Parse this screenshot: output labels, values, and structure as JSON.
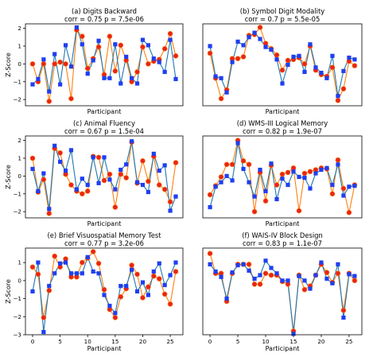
{
  "figure": {
    "x_label": "Participant",
    "y_label": "Z-Score",
    "series_colors": {
      "blue": "#1f77b4",
      "orange": "#ff7f0e",
      "blue_marker": "#1f3ff0",
      "red_marker": "#e8251a"
    }
  },
  "chart_data": [
    {
      "type": "line",
      "title": "(a) Digits Backward",
      "subtitle": "corr = 0.75  p = 7.5e-06",
      "xlabel": "",
      "ylabel": "Z-Score",
      "xlim": [
        -1.3,
        27.3
      ],
      "ylim": [
        -2.35,
        2.25
      ],
      "xticks": [],
      "yticks": [
        -2,
        -1,
        0,
        1,
        2
      ],
      "x": [
        0,
        1,
        2,
        3,
        4,
        5,
        6,
        7,
        8,
        9,
        10,
        11,
        12,
        13,
        14,
        15,
        16,
        17,
        18,
        19,
        20,
        21,
        22,
        23,
        24,
        25,
        26
      ],
      "series": [
        {
          "color": "blue",
          "marker": "square",
          "values": [
            -1.15,
            -0.85,
            0.25,
            -1.55,
            0.55,
            -1.15,
            1.05,
            -0.15,
            2.05,
            1.1,
            -0.55,
            0.2,
            1.3,
            -0.8,
            -0.8,
            1.1,
            -1.1,
            0.4,
            -0.8,
            -1.1,
            1.35,
            1.05,
            0.3,
            0.1,
            -0.45,
            1.35,
            -0.85
          ]
        },
        {
          "color": "orange",
          "marker": "circle",
          "values": [
            0.0,
            -1.0,
            0.0,
            -2.1,
            0.0,
            0.1,
            0.0,
            -1.95,
            1.9,
            1.55,
            -0.25,
            0.3,
            0.95,
            -0.6,
            1.55,
            -0.4,
            1.05,
            0.2,
            -1.0,
            -0.45,
            0.95,
            0.0,
            0.15,
            0.25,
            0.85,
            1.7,
            0.45
          ]
        }
      ]
    },
    {
      "type": "line",
      "title": "(b) Symbol Digit Modality",
      "subtitle": "corr = 0.7  p = 5.5e-05",
      "xlabel": "",
      "ylabel": "",
      "xlim": [
        -1.3,
        27.3
      ],
      "ylim": [
        -2.35,
        2.25
      ],
      "xticks": [],
      "yticks": [],
      "x": [
        0,
        1,
        2,
        3,
        4,
        5,
        6,
        7,
        8,
        9,
        10,
        11,
        12,
        13,
        14,
        15,
        16,
        17,
        18,
        19,
        20,
        21,
        22,
        23,
        24,
        25,
        26
      ],
      "series": [
        {
          "color": "blue",
          "marker": "square",
          "values": [
            1.0,
            -0.7,
            -0.8,
            -1.6,
            0.1,
            1.25,
            1.05,
            1.5,
            1.75,
            1.4,
            0.95,
            0.8,
            0.25,
            -1.1,
            -0.05,
            0.4,
            0.45,
            -0.45,
            1.1,
            -0.2,
            -0.5,
            -0.8,
            0.45,
            -1.8,
            -0.4,
            0.35,
            0.25
          ]
        },
        {
          "color": "orange",
          "marker": "circle",
          "values": [
            0.6,
            -0.8,
            -1.95,
            -1.45,
            0.3,
            0.3,
            0.4,
            1.6,
            1.65,
            2.05,
            1.15,
            0.85,
            0.5,
            -0.35,
            0.2,
            0.25,
            0.35,
            0.0,
            1.0,
            -0.35,
            -0.6,
            -0.7,
            -0.2,
            -2.05,
            -1.4,
            0.15,
            -0.1
          ]
        }
      ]
    },
    {
      "type": "line",
      "title": "(c) Animal Fluency",
      "subtitle": "corr = 0.67  p = 1.5e-04",
      "xlabel": "",
      "ylabel": "Z-Score",
      "xlim": [
        -1.3,
        27.3
      ],
      "ylim": [
        -2.35,
        2.25
      ],
      "xticks": [],
      "yticks": [
        -2,
        -1,
        0,
        1,
        2
      ],
      "x": [
        0,
        1,
        2,
        3,
        4,
        5,
        6,
        7,
        8,
        9,
        10,
        11,
        12,
        13,
        14,
        15,
        16,
        17,
        18,
        19,
        20,
        21,
        22,
        23,
        24,
        25,
        26
      ],
      "series": [
        {
          "color": "blue",
          "marker": "square",
          "values": [
            0.4,
            -0.85,
            0.15,
            -1.85,
            1.7,
            0.8,
            0.3,
            1.45,
            -0.75,
            -0.15,
            -0.5,
            1.05,
            -0.4,
            1.05,
            -0.2,
            -0.75,
            0.35,
            0.65,
            1.95,
            -0.35,
            -0.5,
            -0.9,
            1.25,
            0.3,
            0.6,
            -1.95,
            -1.15
          ]
        },
        {
          "color": "orange",
          "marker": "circle",
          "values": [
            1.0,
            -0.9,
            -0.2,
            -2.1,
            1.55,
            1.3,
            0.1,
            -0.5,
            -0.85,
            -1.0,
            -0.85,
            1.1,
            1.05,
            -0.25,
            0.1,
            -1.75,
            0.1,
            -0.1,
            1.9,
            -0.4,
            0.85,
            -0.3,
            1.1,
            -0.5,
            -0.75,
            -1.45,
            0.75
          ]
        }
      ]
    },
    {
      "type": "line",
      "title": "(d) WMS-III Logical Memory",
      "subtitle": "corr = 0.82  p = 1.9e-07",
      "xlabel": "",
      "ylabel": "",
      "xlim": [
        -1.3,
        27.3
      ],
      "ylim": [
        -2.35,
        2.25
      ],
      "xticks": [],
      "yticks": [],
      "x": [
        0,
        1,
        2,
        3,
        4,
        5,
        6,
        7,
        8,
        9,
        10,
        11,
        12,
        13,
        14,
        15,
        16,
        17,
        18,
        19,
        20,
        21,
        22,
        23,
        24,
        25,
        26
      ],
      "series": [
        {
          "color": "blue",
          "marker": "square",
          "values": [
            -1.75,
            -0.6,
            -0.35,
            0.0,
            -0.25,
            1.85,
            0.4,
            -0.35,
            -1.15,
            0.35,
            -0.85,
            0.7,
            -1.3,
            -0.15,
            -0.5,
            0.25,
            -0.05,
            -0.1,
            -0.7,
            0.15,
            0.35,
            0.45,
            -0.5,
            0.65,
            -1.1,
            -0.6,
            -0.55
          ]
        },
        {
          "color": "orange",
          "marker": "circle",
          "values": [
            -1.05,
            -0.55,
            -0.05,
            0.65,
            0.65,
            2.0,
            0.85,
            0.65,
            -2.0,
            0.2,
            -1.4,
            0.6,
            -0.5,
            0.1,
            0.2,
            0.45,
            -1.95,
            0.15,
            0.25,
            0.35,
            0.45,
            0.4,
            -1.0,
            0.9,
            -0.7,
            -2.05,
            -0.5
          ]
        }
      ]
    },
    {
      "type": "line",
      "title": "(e) Brief Visuospatial Memory Test",
      "subtitle": "corr = 0.77  p = 3.2e-06",
      "xlabel": "Participant",
      "ylabel": "Z-Score",
      "xlim": [
        -1.3,
        27.3
      ],
      "ylim": [
        -3.0,
        1.8
      ],
      "xticks": [
        0,
        5,
        10,
        15,
        20,
        25
      ],
      "yticks": [
        -3,
        -2,
        -1,
        0,
        1
      ],
      "x": [
        0,
        1,
        2,
        3,
        4,
        5,
        6,
        7,
        8,
        9,
        10,
        11,
        12,
        13,
        14,
        15,
        16,
        17,
        18,
        19,
        20,
        21,
        22,
        23,
        24,
        25,
        26
      ],
      "series": [
        {
          "color": "blue",
          "marker": "square",
          "values": [
            -0.6,
            1.0,
            -2.85,
            -0.3,
            0.4,
            0.95,
            1.0,
            0.4,
            0.4,
            0.4,
            1.3,
            0.5,
            0.4,
            -0.8,
            -1.4,
            -1.8,
            -0.3,
            -0.3,
            0.6,
            -0.6,
            -0.1,
            -0.8,
            0.5,
            0.95,
            -0.25,
            0.3,
            1.0
          ]
        },
        {
          "color": "orange",
          "marker": "circle",
          "values": [
            0.75,
            0.35,
            -2.05,
            -0.55,
            1.35,
            0.75,
            1.2,
            0.2,
            0.2,
            1.0,
            1.25,
            1.6,
            0.95,
            -0.5,
            -1.6,
            -2.05,
            -0.9,
            -0.45,
            0.85,
            0.35,
            -0.95,
            -0.35,
            0.25,
            0.1,
            -0.75,
            -1.3,
            0.5
          ]
        }
      ]
    },
    {
      "type": "line",
      "title": "(f) WAIS-IV Block Design",
      "subtitle": "corr = 0.83  p = 1.1e-07",
      "xlabel": "Participant",
      "ylabel": "",
      "xlim": [
        -1.3,
        27.3
      ],
      "ylim": [
        -3.0,
        1.8
      ],
      "xticks": [
        0,
        5,
        10,
        15,
        20,
        25
      ],
      "yticks": [],
      "x": [
        0,
        1,
        2,
        3,
        4,
        5,
        6,
        7,
        8,
        9,
        10,
        11,
        12,
        13,
        14,
        15,
        16,
        17,
        18,
        19,
        20,
        21,
        22,
        23,
        24,
        25,
        26
      ],
      "series": [
        {
          "color": "blue",
          "marker": "square",
          "values": [
            0.9,
            0.5,
            0.2,
            -1.0,
            0.45,
            0.85,
            0.9,
            0.55,
            0.1,
            0.3,
            1.1,
            0.7,
            0.4,
            0.0,
            0.0,
            -2.95,
            0.25,
            0.0,
            -0.45,
            0.3,
            1.0,
            0.1,
            -0.15,
            0.9,
            -2.05,
            0.35,
            0.25
          ]
        },
        {
          "color": "orange",
          "marker": "circle",
          "values": [
            1.5,
            0.4,
            0.4,
            -1.15,
            0.4,
            0.9,
            0.9,
            0.9,
            -0.2,
            -0.2,
            0.4,
            0.3,
            0.3,
            -0.05,
            -0.2,
            -2.8,
            0.3,
            -0.5,
            -0.3,
            0.3,
            0.9,
            0.45,
            -0.1,
            0.4,
            -1.65,
            0.4,
            0.0
          ]
        }
      ]
    }
  ]
}
